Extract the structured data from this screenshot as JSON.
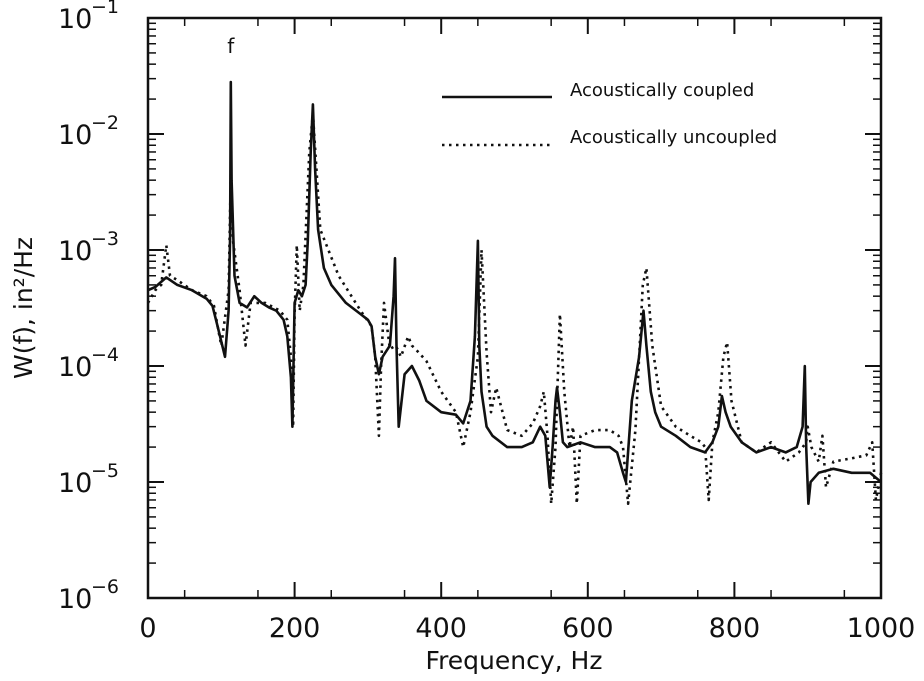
{
  "chart_data": {
    "type": "line",
    "title": "",
    "xlabel": "Frequency, Hz",
    "ylabel": "W(f), in²/Hz",
    "xlim": [
      0,
      1000
    ],
    "ylim": [
      1e-06,
      0.1
    ],
    "yscale": "log",
    "grid": false,
    "legend_position": "top-right",
    "x_ticks": [
      {
        "value": 0,
        "label": "0"
      },
      {
        "value": 200,
        "label": "200"
      },
      {
        "value": 400,
        "label": "400"
      },
      {
        "value": 600,
        "label": "600"
      },
      {
        "value": 800,
        "label": "800"
      },
      {
        "value": 1000,
        "label": "1000"
      }
    ],
    "y_ticks": [
      {
        "value": 1e-06,
        "base": "10",
        "exp": "−6"
      },
      {
        "value": 1e-05,
        "base": "10",
        "exp": "−5"
      },
      {
        "value": 0.0001,
        "base": "10",
        "exp": "−4"
      },
      {
        "value": 0.001,
        "base": "10",
        "exp": "−3"
      },
      {
        "value": 0.01,
        "base": "10",
        "exp": "−2"
      },
      {
        "value": 0.1,
        "base": "10",
        "exp": "−1"
      }
    ],
    "annotations": [
      {
        "text": "f",
        "x": 113,
        "y": 0.05
      }
    ],
    "series": [
      {
        "name": "Acoustically coupled",
        "style": "solid",
        "x": [
          0,
          10,
          25,
          40,
          60,
          80,
          88,
          95,
          105,
          110,
          112,
          113,
          114,
          118,
          125,
          135,
          145,
          155,
          165,
          175,
          185,
          190,
          195,
          197,
          200,
          205,
          210,
          215,
          218,
          222,
          225,
          228,
          232,
          240,
          250,
          270,
          290,
          300,
          305,
          310,
          315,
          320,
          330,
          335,
          337,
          339,
          342,
          350,
          360,
          370,
          380,
          400,
          420,
          430,
          440,
          446,
          450,
          452,
          455,
          462,
          470,
          490,
          510,
          525,
          535,
          542,
          548,
          552,
          556,
          558,
          562,
          566,
          572,
          590,
          610,
          630,
          640,
          648,
          652,
          660,
          670,
          676,
          680,
          686,
          692,
          700,
          720,
          740,
          760,
          770,
          778,
          783,
          788,
          795,
          810,
          830,
          850,
          870,
          885,
          893,
          896,
          898,
          901,
          904,
          915,
          935,
          960,
          985,
          1000
        ],
        "y": [
          0.00045,
          0.00048,
          0.00058,
          0.0005,
          0.00045,
          0.00038,
          0.00033,
          0.00022,
          0.00012,
          0.0003,
          0.0013,
          0.028,
          0.004,
          0.0006,
          0.00035,
          0.00032,
          0.0004,
          0.00035,
          0.00032,
          0.0003,
          0.00025,
          0.00018,
          8e-05,
          3e-05,
          0.00035,
          0.00045,
          0.0004,
          0.0005,
          0.0012,
          0.007,
          0.018,
          0.005,
          0.0015,
          0.0007,
          0.0005,
          0.00035,
          0.00028,
          0.00025,
          0.00022,
          0.00012,
          8.5e-05,
          0.00012,
          0.00015,
          0.0004,
          0.00085,
          0.00015,
          3e-05,
          8.5e-05,
          0.0001,
          7.5e-05,
          5e-05,
          4e-05,
          3.8e-05,
          3.2e-05,
          5e-05,
          0.00018,
          0.0012,
          0.00015,
          6e-05,
          3e-05,
          2.5e-05,
          2e-05,
          2e-05,
          2.2e-05,
          3e-05,
          2.5e-05,
          9e-06,
          2e-05,
          5e-05,
          6.5e-05,
          4e-05,
          2.2e-05,
          2e-05,
          2.2e-05,
          2e-05,
          2e-05,
          1.8e-05,
          1.2e-05,
          1e-05,
          5e-05,
          0.00012,
          0.0003,
          0.00015,
          6e-05,
          4e-05,
          3e-05,
          2.5e-05,
          2e-05,
          1.8e-05,
          2.2e-05,
          3e-05,
          5.5e-05,
          4e-05,
          3e-05,
          2.2e-05,
          1.8e-05,
          2e-05,
          1.8e-05,
          2e-05,
          3e-05,
          0.0001,
          2e-05,
          6.5e-06,
          1e-05,
          1.2e-05,
          1.3e-05,
          1.2e-05,
          1.2e-05,
          1e-05
        ]
      },
      {
        "name": "Acoustically uncoupled",
        "style": "dotted",
        "x": [
          0,
          10,
          18,
          25,
          30,
          40,
          60,
          80,
          90,
          95,
          100,
          110,
          113,
          116,
          125,
          133,
          140,
          160,
          180,
          190,
          195,
          198,
          200,
          203,
          207,
          212,
          220,
          225,
          235,
          260,
          290,
          305,
          310,
          315,
          318,
          322,
          330,
          338,
          345,
          355,
          360,
          365,
          380,
          400,
          420,
          430,
          440,
          450,
          455,
          462,
          468,
          475,
          490,
          510,
          525,
          535,
          540,
          545,
          550,
          556,
          562,
          568,
          575,
          580,
          585,
          590,
          610,
          630,
          642,
          648,
          655,
          665,
          675,
          680,
          688,
          700,
          720,
          740,
          755,
          760,
          765,
          770,
          778,
          785,
          790,
          796,
          810,
          830,
          850,
          870,
          888,
          898,
          900,
          905,
          915,
          920,
          925,
          935,
          960,
          980,
          988,
          993,
          1000
        ],
        "y": [
          0.00035,
          0.00045,
          0.0005,
          0.0011,
          0.0006,
          0.00055,
          0.00045,
          0.0004,
          0.00033,
          0.00022,
          0.00015,
          0.00045,
          0.0045,
          0.0012,
          0.00045,
          0.00015,
          0.00035,
          0.00035,
          0.0003,
          0.00025,
          0.00012,
          3e-05,
          0.00028,
          0.0011,
          0.0003,
          0.0005,
          0.007,
          0.015,
          0.0015,
          0.0006,
          0.0003,
          0.00022,
          0.00012,
          2.5e-05,
          0.0001,
          0.00035,
          0.00014,
          0.00015,
          0.00012,
          0.00018,
          0.00015,
          0.00014,
          0.00011,
          6e-05,
          4e-05,
          2e-05,
          4e-05,
          0.00012,
          0.001,
          0.00013,
          4e-05,
          6.5e-05,
          2.8e-05,
          2.5e-05,
          3.2e-05,
          4.5e-05,
          6e-05,
          2.5e-05,
          6.5e-06,
          2e-05,
          0.00028,
          6e-05,
          2e-05,
          3e-05,
          6.5e-06,
          2.5e-05,
          2.8e-05,
          2.8e-05,
          2.5e-05,
          2e-05,
          6.5e-06,
          2.8e-05,
          0.0005,
          0.0007,
          0.00015,
          4.5e-05,
          3e-05,
          2.5e-05,
          2.2e-05,
          2e-05,
          7e-06,
          2.2e-05,
          4e-05,
          0.00012,
          0.00016,
          5e-05,
          2.2e-05,
          1.8e-05,
          2.2e-05,
          1.5e-05,
          1.8e-05,
          2.2e-05,
          3e-05,
          2e-05,
          1.5e-05,
          2.5e-05,
          9e-06,
          1.5e-05,
          1.6e-05,
          1.7e-05,
          2.2e-05,
          7e-06,
          1.2e-05
        ]
      }
    ]
  }
}
